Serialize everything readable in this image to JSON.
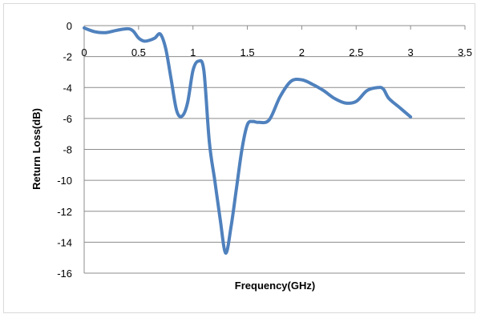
{
  "chart_data": {
    "type": "line",
    "title": "",
    "xlabel": "Frequency(GHz)",
    "ylabel": "Return Loss(dB)",
    "xlim": [
      0,
      3.5
    ],
    "ylim": [
      -16,
      0
    ],
    "x_ticks": [
      "0",
      "0.5",
      "1",
      "1.5",
      "2",
      "2.5",
      "3",
      "3.5"
    ],
    "y_ticks": [
      "0",
      "-2",
      "-4",
      "-6",
      "-8",
      "-10",
      "-12",
      "-14",
      "-16"
    ],
    "grid": "horizontal",
    "legend": "none",
    "series_color": "#4f81bd",
    "series": [
      {
        "x": [
          0,
          0.1,
          0.2,
          0.3,
          0.4,
          0.45,
          0.5,
          0.55,
          0.6,
          0.65,
          0.7,
          0.75,
          0.8,
          0.85,
          0.9,
          0.95,
          1.0,
          1.05,
          1.1,
          1.15,
          1.2,
          1.25,
          1.3,
          1.35,
          1.4,
          1.45,
          1.5,
          1.55,
          1.6,
          1.7,
          1.8,
          1.9,
          2.0,
          2.1,
          2.2,
          2.3,
          2.4,
          2.5,
          2.6,
          2.7,
          2.75,
          2.8,
          2.9,
          3.0
        ],
        "y": [
          -0.15,
          -0.4,
          -0.45,
          -0.3,
          -0.2,
          -0.35,
          -0.8,
          -1.0,
          -0.95,
          -0.8,
          -0.55,
          -1.5,
          -3.5,
          -5.5,
          -5.85,
          -5.0,
          -2.9,
          -2.3,
          -2.9,
          -7.5,
          -10.0,
          -12.5,
          -14.7,
          -13.0,
          -10.5,
          -8.0,
          -6.4,
          -6.2,
          -6.25,
          -6.1,
          -4.6,
          -3.6,
          -3.5,
          -3.8,
          -4.2,
          -4.7,
          -5.0,
          -4.9,
          -4.2,
          -4.0,
          -4.1,
          -4.7,
          -5.3,
          -5.9
        ]
      }
    ]
  }
}
